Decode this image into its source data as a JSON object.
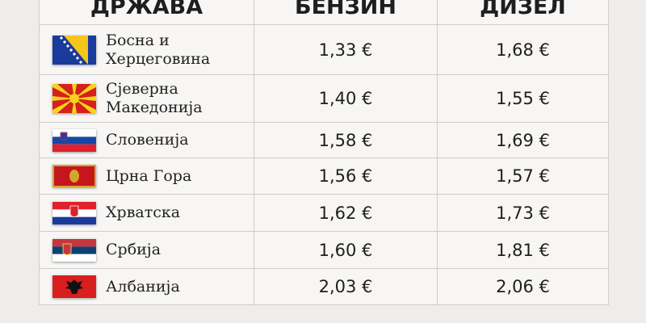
{
  "headers": {
    "country": "ДРЖАВА",
    "petrol": "БЕНЗИН",
    "diesel": "ДИЗЕЛ"
  },
  "rows": [
    {
      "country": "Босна и Херцеговина",
      "flag": "bosnia-flag",
      "petrol": "1,33 €",
      "diesel": "1,68 €"
    },
    {
      "country": "Сјеверна Македонија",
      "flag": "north-macedonia-flag",
      "petrol": "1,40 €",
      "diesel": "1,55 €"
    },
    {
      "country": "Словенија",
      "flag": "slovenia-flag",
      "petrol": "1,58 €",
      "diesel": "1,69 €"
    },
    {
      "country": "Црна Гора",
      "flag": "montenegro-flag",
      "petrol": "1,56 €",
      "diesel": "1,57 €"
    },
    {
      "country": "Хрватска",
      "flag": "croatia-flag",
      "petrol": "1,62 €",
      "diesel": "1,73 €"
    },
    {
      "country": "Србија",
      "flag": "serbia-flag",
      "petrol": "1,60 €",
      "diesel": "1,81 €"
    },
    {
      "country": "Албанија",
      "flag": "albania-flag",
      "petrol": "2,03 €",
      "diesel": "2,06 €"
    }
  ]
}
